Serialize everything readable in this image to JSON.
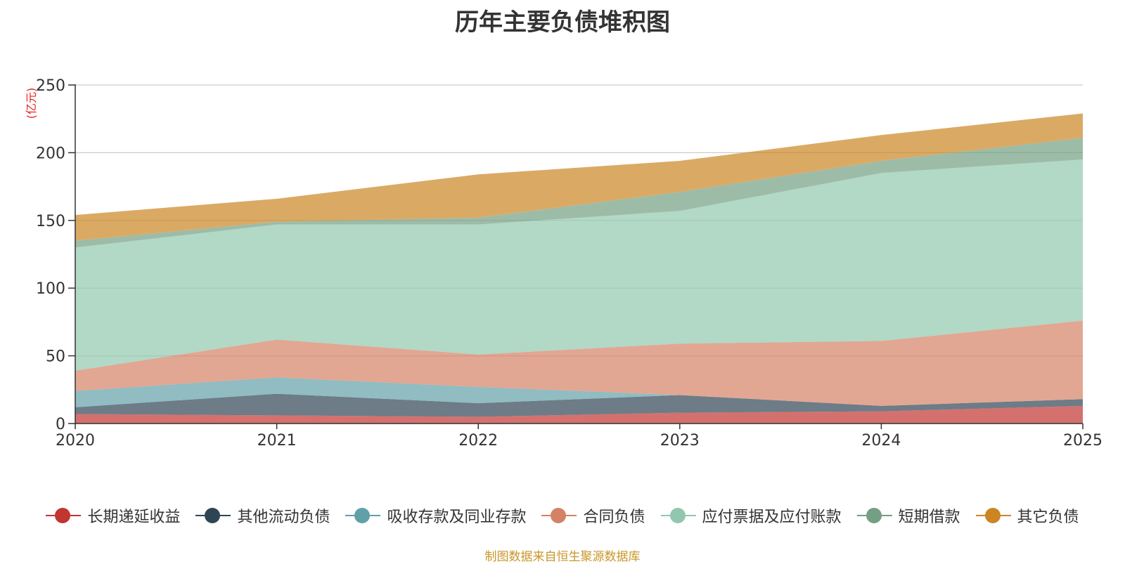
{
  "chart_data": {
    "type": "area",
    "stacked": true,
    "title": "历年主要负债堆积图",
    "unit": "(亿元)",
    "categories": [
      "2020",
      "2021",
      "2022",
      "2023",
      "2024",
      "2025"
    ],
    "y_ticks": [
      "0",
      "50",
      "100",
      "150",
      "200",
      "250"
    ],
    "ylim": [
      0,
      250
    ],
    "grid": true,
    "series": [
      {
        "name": "长期递延收益",
        "color": "#c23531",
        "values": [
          7,
          6,
          5,
          8,
          9,
          13
        ]
      },
      {
        "name": "其他流动负债",
        "color": "#2f4554",
        "values": [
          5,
          16,
          10,
          13,
          4,
          5
        ]
      },
      {
        "name": "吸收存款及同业存款",
        "color": "#61a0a8",
        "values": [
          12,
          12,
          12,
          0,
          0,
          0
        ]
      },
      {
        "name": "合同负债",
        "color": "#d48265",
        "values": [
          15,
          28,
          24,
          38,
          48,
          58
        ]
      },
      {
        "name": "应付票据及应付账款",
        "color": "#91c7ae",
        "values": [
          91,
          85,
          96,
          98,
          124,
          119
        ]
      },
      {
        "name": "短期借款",
        "color": "#749f83",
        "values": [
          5,
          2,
          5,
          14,
          9,
          16
        ]
      },
      {
        "name": "其它负债",
        "color": "#ca8622",
        "values": [
          19,
          17,
          32,
          23,
          19,
          18
        ]
      }
    ],
    "legend_position": "bottom"
  },
  "source_note": "制图数据来自恒生聚源数据库"
}
